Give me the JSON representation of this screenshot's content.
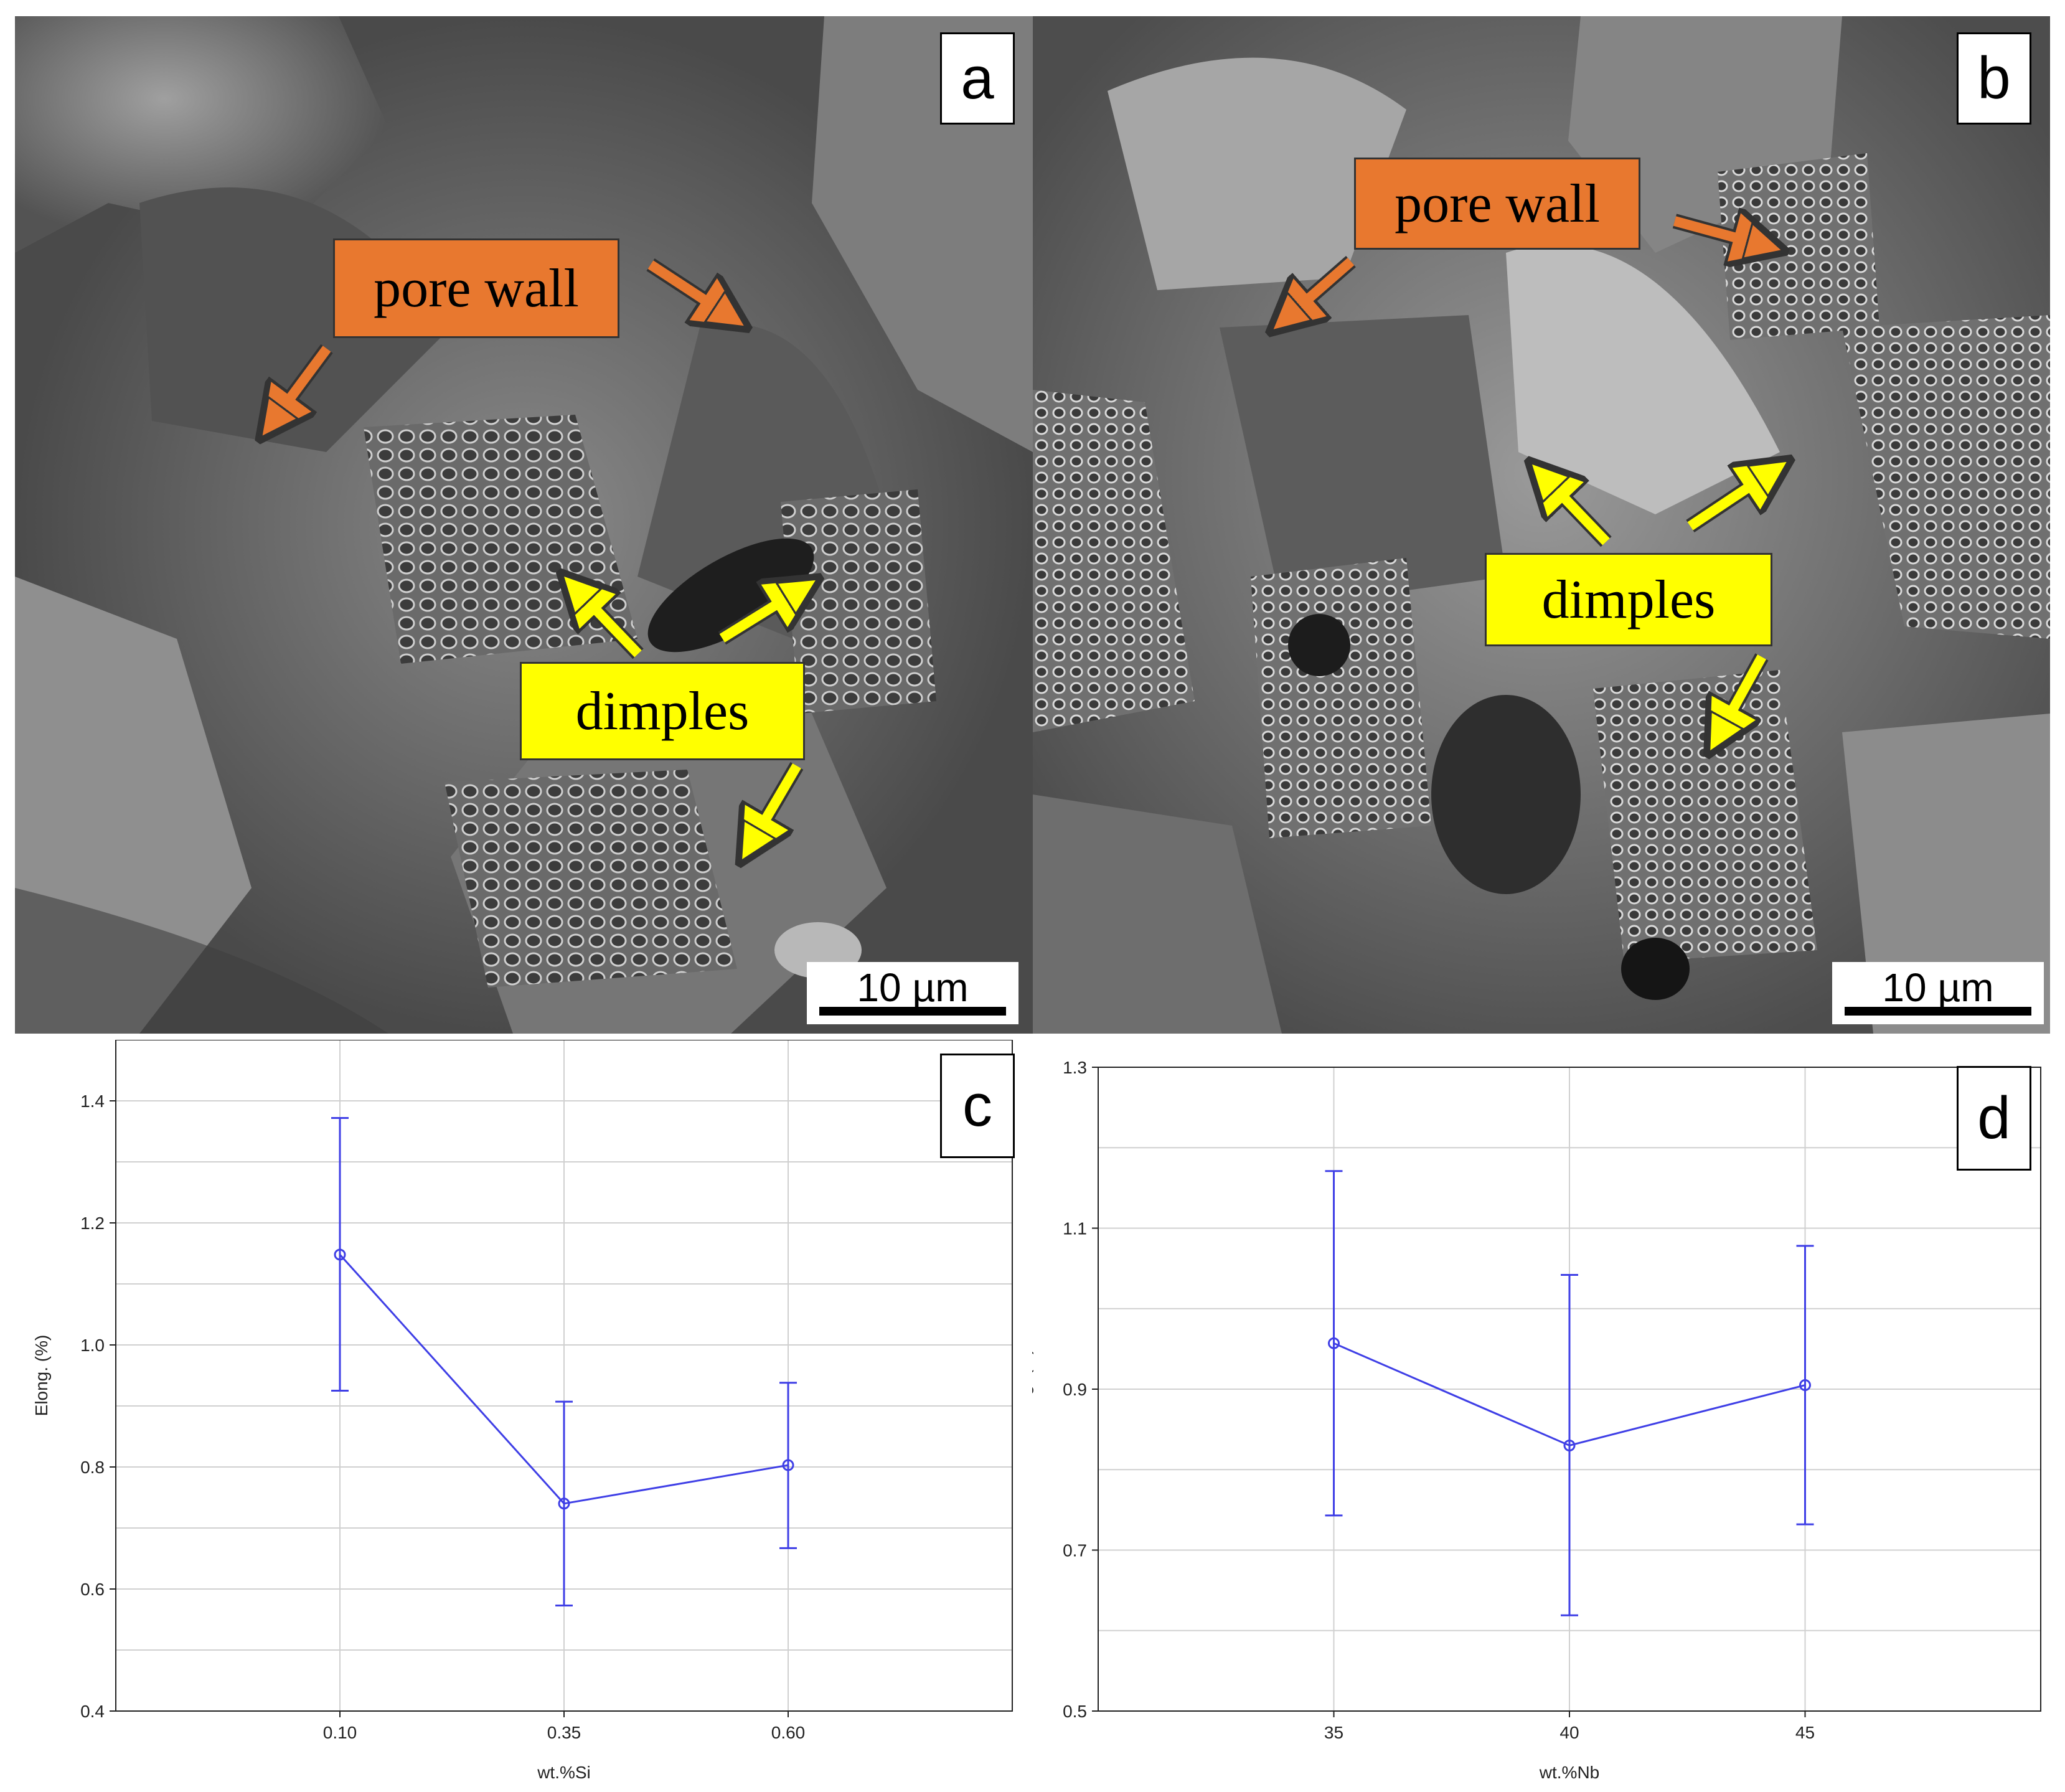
{
  "panel_a": {
    "letter": "a",
    "tags": {
      "pore_wall": "pore wall",
      "dimples": "dimples"
    },
    "scale": "10 µm"
  },
  "panel_b": {
    "letter": "b",
    "tags": {
      "pore_wall": "pore wall",
      "dimples": "dimples"
    },
    "scale": "10 µm"
  },
  "colors": {
    "orange_tag": "#e8782f",
    "yellow_tag": "#ffff00",
    "series": "#3f3fe6"
  },
  "chart_data": [
    {
      "type": "line",
      "panel_letter": "c",
      "categories": [
        "0.10",
        "0.35",
        "0.60"
      ],
      "values": [
        1.148,
        0.74,
        0.803
      ],
      "error_low": [
        0.925,
        0.573,
        0.667
      ],
      "error_high": [
        1.372,
        0.907,
        0.938
      ],
      "yticks": [
        "0.4",
        "0.6",
        "0.8",
        "1.0",
        "1.2",
        "1.4"
      ],
      "ylim": [
        0.4,
        1.5
      ],
      "xlabel": "wt.%Si",
      "ylabel": "Elong. (%)",
      "grid": true
    },
    {
      "type": "line",
      "panel_letter": "d",
      "categories": [
        "35",
        "40",
        "45"
      ],
      "values": [
        0.957,
        0.83,
        0.905
      ],
      "error_low": [
        0.743,
        0.619,
        0.732
      ],
      "error_high": [
        1.171,
        1.042,
        1.078
      ],
      "yticks": [
        "0.5",
        "0.7",
        "0.9",
        "1.1",
        "1.3"
      ],
      "ylim": [
        0.5,
        1.3
      ],
      "xlabel": "wt.%Nb",
      "ylabel": "Elong. (%)",
      "grid": true
    }
  ]
}
